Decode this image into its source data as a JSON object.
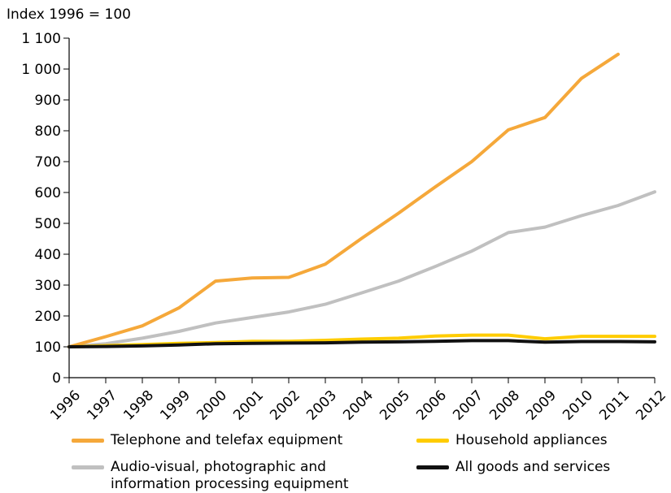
{
  "chart_data": {
    "type": "line",
    "ylabel": "Index 1996 = 100",
    "ylim": [
      0,
      1100
    ],
    "yticks": [
      "0",
      "100",
      "200",
      "300",
      "400",
      "500",
      "600",
      "700",
      "800",
      "900",
      "1 000",
      "1 100"
    ],
    "ytick_values": [
      0,
      100,
      200,
      300,
      400,
      500,
      600,
      700,
      800,
      900,
      1000,
      1100
    ],
    "x": [
      "1996",
      "1997",
      "1998",
      "1999",
      "2000",
      "2001",
      "2002",
      "2003",
      "2004",
      "2005",
      "2006",
      "2007",
      "2008",
      "2009",
      "2010",
      "2011",
      "2012"
    ],
    "grid": false,
    "legend_placement": "bottom",
    "series": [
      {
        "name": "Telephone and telefax equipment",
        "color": "#f5a83a",
        "values": [
          100,
          133,
          168,
          226,
          313,
          323,
          325,
          368,
          452,
          533,
          618,
          700,
          803,
          843,
          970,
          1048,
          null
        ]
      },
      {
        "name": "Audio-visual, photographic and\ninformation processing equipment",
        "color": "#c0c0c0",
        "values": [
          100,
          110,
          128,
          150,
          177,
          195,
          213,
          238,
          275,
          313,
          360,
          410,
          470,
          488,
          525,
          558,
          602
        ]
      },
      {
        "name": "Household appliances",
        "color": "#ffcc00",
        "values": [
          100,
          104,
          107,
          111,
          114,
          118,
          118,
          121,
          125,
          128,
          135,
          138,
          138,
          126,
          134,
          134,
          134
        ]
      },
      {
        "name": "All goods and services",
        "color": "#111111",
        "values": [
          100,
          101,
          103,
          106,
          110,
          111,
          112,
          113,
          115,
          116,
          118,
          120,
          120,
          115,
          117,
          117,
          116
        ]
      }
    ]
  }
}
